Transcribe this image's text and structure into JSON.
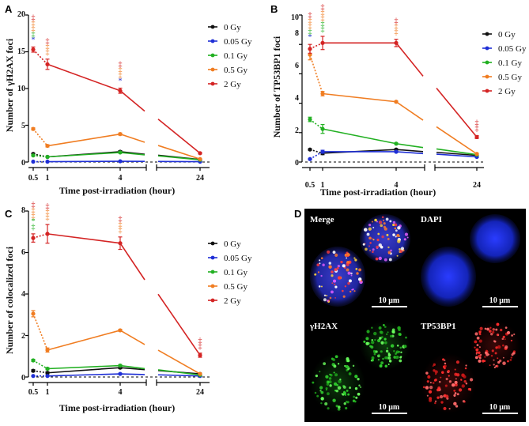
{
  "panels": [
    {
      "letter": "A",
      "ylabel": "Number of γH2AX foci",
      "xlabel": "Time post-irradiation (hour)",
      "yticks": [
        "0",
        "5",
        "10",
        "15",
        "20"
      ],
      "xticks": [
        "0.5",
        "1",
        "4",
        "24"
      ]
    },
    {
      "letter": "B",
      "ylabel": "Number of TP53BP1 foci",
      "xlabel": "Time post-irradiation (hour)",
      "yticks": [
        "0",
        "2",
        "4",
        "6",
        "8",
        "10"
      ],
      "xticks": [
        "0.5",
        "1",
        "4",
        "24"
      ]
    },
    {
      "letter": "C",
      "ylabel": "Number of colocalized foci",
      "xlabel": "Time post-irradiation (hour)",
      "yticks": [
        "0",
        "2",
        "4",
        "6",
        "8"
      ],
      "xticks": [
        "0.5",
        "1",
        "4",
        "24"
      ]
    }
  ],
  "legend": [
    "0 Gy",
    "0.05 Gy",
    "0.1 Gy",
    "0.5 Gy",
    "2 Gy"
  ],
  "colors": [
    "#111111",
    "#1f2fd6",
    "#22b022",
    "#f07d22",
    "#d42424"
  ],
  "sig_symbols": {
    "star": "*",
    "dagger": "‡"
  },
  "chart_data": [
    {
      "type": "line",
      "title": "A",
      "xlabel": "Time post-irradiation (hour)",
      "ylabel": "Number of γH2AX foci",
      "x": [
        0.5,
        1,
        4,
        24
      ],
      "ylim": [
        0,
        20
      ],
      "series": [
        {
          "name": "0 Gy",
          "values": [
            1.1,
            0.7,
            1.4,
            0.35
          ],
          "err": [
            0.1,
            0.1,
            0.15,
            0.05
          ]
        },
        {
          "name": "0.05 Gy",
          "values": [
            0.05,
            0.05,
            0.1,
            0.05
          ],
          "err": [
            0.03,
            0.03,
            0.05,
            0.03
          ]
        },
        {
          "name": "0.1 Gy",
          "values": [
            0.9,
            0.7,
            1.3,
            0.3
          ],
          "err": [
            0.1,
            0.1,
            0.1,
            0.05
          ]
        },
        {
          "name": "0.5 Gy",
          "values": [
            4.5,
            2.2,
            3.8,
            0.4
          ],
          "err": [
            0.15,
            0.15,
            0.15,
            0.05
          ]
        },
        {
          "name": "2 Gy",
          "values": [
            15.3,
            13.3,
            9.7,
            1.2
          ],
          "err": [
            0.35,
            0.7,
            0.35,
            0.1
          ]
        }
      ],
      "sig_marks": [
        {
          "x": 0.5,
          "marks": [
            [
              "dagger",
              "2 Gy"
            ],
            [
              "dagger",
              "0.5 Gy"
            ],
            [
              "dagger",
              "0.5 Gy"
            ],
            [
              "dagger",
              "0.1 Gy"
            ],
            [
              "star",
              "0.05 Gy"
            ]
          ]
        },
        {
          "x": 1,
          "marks": [
            [
              "dagger",
              "2 Gy"
            ],
            [
              "dagger",
              "0.5 Gy"
            ],
            [
              "dagger",
              "0.5 Gy"
            ]
          ]
        },
        {
          "x": 4,
          "marks": [
            [
              "dagger",
              "2 Gy"
            ],
            [
              "dagger",
              "0.5 Gy"
            ],
            [
              "dagger",
              "0.5 Gy"
            ],
            [
              "star",
              "0.05 Gy"
            ]
          ]
        }
      ]
    },
    {
      "type": "line",
      "title": "B",
      "xlabel": "Time post-irradiation (hour)",
      "ylabel": "Number of TP53BP1 foci",
      "x": [
        0.5,
        1,
        4,
        24
      ],
      "ylim": [
        0,
        10
      ],
      "series": [
        {
          "name": "0 Gy",
          "values": [
            0.85,
            0.6,
            0.85,
            0.45
          ],
          "err": [
            0.05,
            0.1,
            0.05,
            0.05
          ]
        },
        {
          "name": "0.05 Gy",
          "values": [
            0.2,
            0.7,
            0.7,
            0.35
          ],
          "err": [
            0.05,
            0.1,
            0.05,
            0.05
          ]
        },
        {
          "name": "0.1 Gy",
          "values": [
            2.9,
            2.25,
            1.25,
            0.5
          ],
          "err": [
            0.15,
            0.3,
            0.05,
            0.05
          ]
        },
        {
          "name": "0.5 Gy",
          "values": [
            7.3,
            4.65,
            4.1,
            0.55
          ],
          "err": [
            0.35,
            0.15,
            0.05,
            0.05
          ]
        },
        {
          "name": "2 Gy",
          "values": [
            7.7,
            8.1,
            8.1,
            1.7
          ],
          "err": [
            0.3,
            0.45,
            0.25,
            0.1
          ]
        }
      ],
      "sig_marks": [
        {
          "x": 0.5,
          "marks": [
            [
              "dagger",
              "2 Gy"
            ],
            [
              "dagger",
              "0.5 Gy"
            ],
            [
              "dagger",
              "0.5 Gy"
            ],
            [
              "dagger",
              "0.1 Gy"
            ],
            [
              "star",
              "0.05 Gy"
            ]
          ]
        },
        {
          "x": 1,
          "marks": [
            [
              "dagger",
              "2 Gy"
            ],
            [
              "dagger",
              "0.5 Gy"
            ],
            [
              "dagger",
              "0.5 Gy"
            ],
            [
              "dagger",
              "0.1 Gy"
            ],
            [
              "dagger",
              "0.1 Gy"
            ]
          ]
        },
        {
          "x": 4,
          "marks": [
            [
              "dagger",
              "2 Gy"
            ],
            [
              "dagger",
              "0.5 Gy"
            ],
            [
              "dagger",
              "0.5 Gy"
            ]
          ]
        },
        {
          "x": 24,
          "marks": [
            [
              "dagger",
              "2 Gy"
            ],
            [
              "dagger",
              "2 Gy"
            ]
          ]
        }
      ]
    },
    {
      "type": "line",
      "title": "C",
      "xlabel": "Time post-irradiation (hour)",
      "ylabel": "Number of colocalized foci",
      "x": [
        0.5,
        1,
        4,
        24
      ],
      "ylim": [
        0,
        8
      ],
      "series": [
        {
          "name": "0 Gy",
          "values": [
            0.3,
            0.2,
            0.45,
            0.15
          ],
          "err": [
            0.05,
            0.05,
            0.05,
            0.03
          ]
        },
        {
          "name": "0.05 Gy",
          "values": [
            0.05,
            0.05,
            0.15,
            0.05
          ],
          "err": [
            0.02,
            0.02,
            0.03,
            0.02
          ]
        },
        {
          "name": "0.1 Gy",
          "values": [
            0.8,
            0.4,
            0.55,
            0.1
          ],
          "err": [
            0.05,
            0.05,
            0.05,
            0.03
          ]
        },
        {
          "name": "0.5 Gy",
          "values": [
            3.05,
            1.3,
            2.25,
            0.15
          ],
          "err": [
            0.15,
            0.1,
            0.05,
            0.03
          ]
        },
        {
          "name": "2 Gy",
          "values": [
            6.7,
            6.9,
            6.45,
            1.05
          ],
          "err": [
            0.2,
            0.45,
            0.3,
            0.1
          ]
        }
      ],
      "sig_marks": [
        {
          "x": 0.5,
          "marks": [
            [
              "dagger",
              "2 Gy"
            ],
            [
              "dagger",
              "0.5 Gy"
            ],
            [
              "dagger",
              "0.5 Gy"
            ],
            [
              "star",
              "0.1 Gy"
            ],
            [
              "dagger",
              "0.1 Gy"
            ]
          ]
        },
        {
          "x": 1,
          "marks": [
            [
              "dagger",
              "2 Gy"
            ],
            [
              "dagger",
              "0.5 Gy"
            ],
            [
              "dagger",
              "0.5 Gy"
            ]
          ]
        },
        {
          "x": 4,
          "marks": [
            [
              "dagger",
              "2 Gy"
            ],
            [
              "dagger",
              "0.5 Gy"
            ],
            [
              "dagger",
              "0.5 Gy"
            ]
          ]
        },
        {
          "x": 24,
          "marks": [
            [
              "dagger",
              "2 Gy"
            ],
            [
              "dagger",
              "2 Gy"
            ]
          ]
        }
      ]
    }
  ],
  "micrograph": {
    "letter": "D",
    "tiles": [
      {
        "label": "Merge",
        "scale": "10 μm"
      },
      {
        "label": "DAPI",
        "scale": "10 μm"
      },
      {
        "label": "γH2AX",
        "scale": "10 μm"
      },
      {
        "label": "TP53BP1",
        "scale": "10 μm"
      }
    ]
  }
}
